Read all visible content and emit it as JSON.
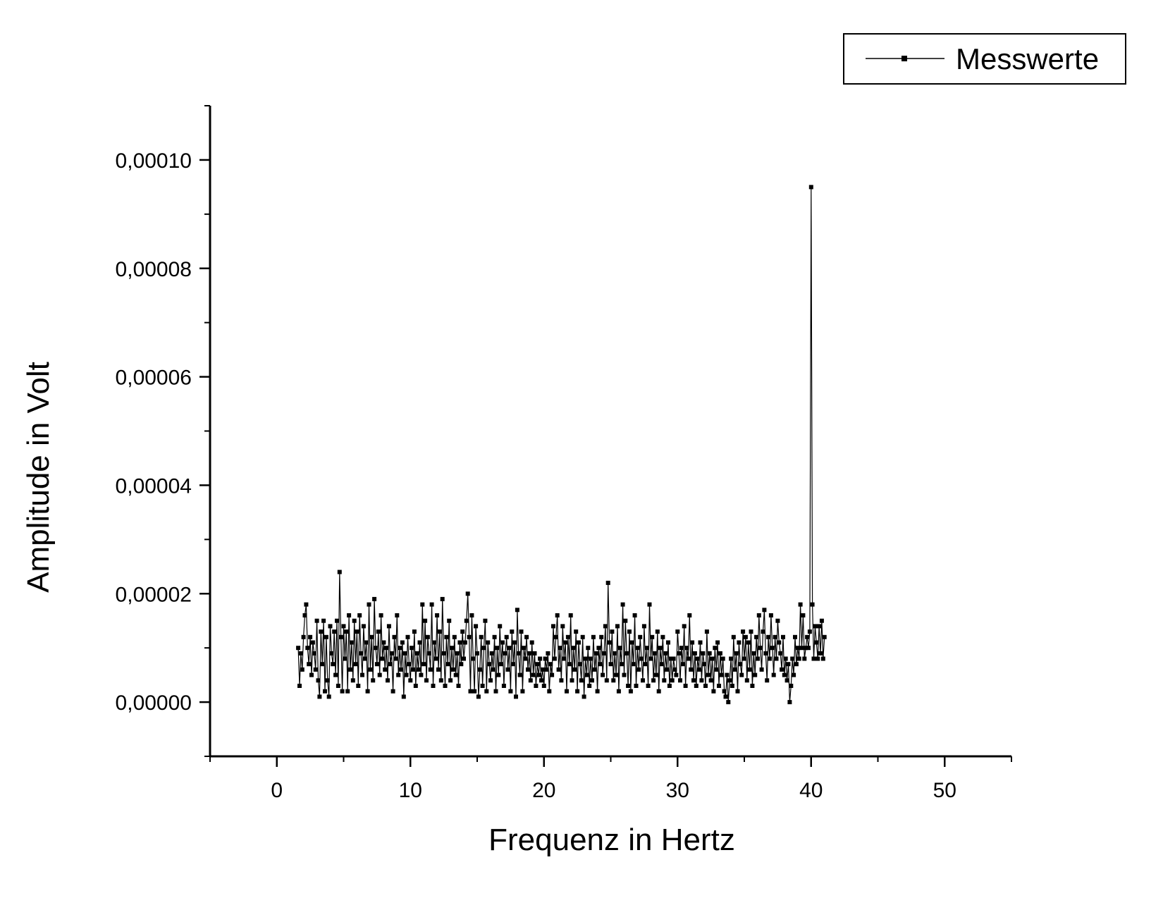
{
  "chart_data": {
    "type": "line",
    "title": "",
    "xlabel": "Frequenz in Hertz",
    "ylabel": "Amplitude in Volt",
    "xlim": [
      -5,
      55
    ],
    "ylim": [
      -1e-05,
      0.00011
    ],
    "x_ticks": [
      0,
      10,
      20,
      30,
      40,
      50
    ],
    "x_tick_labels": [
      "0",
      "10",
      "20",
      "30",
      "40",
      "50"
    ],
    "y_ticks": [
      0,
      2e-05,
      4e-05,
      6e-05,
      8e-05,
      0.0001
    ],
    "y_tick_labels": [
      "0,00000",
      "0,00002",
      "0,00004",
      "0,00006",
      "0,00008",
      "0,00010"
    ],
    "grid": false,
    "legend_position": "top-right",
    "series": [
      {
        "name": "Messwerte",
        "color": "#000000",
        "marker": "square",
        "x_start": 1.6,
        "x_step": 0.1,
        "values": [
          1e-05,
          3e-06,
          9e-06,
          6e-06,
          1.2e-05,
          1.6e-05,
          1.8e-05,
          1e-05,
          7e-06,
          1.2e-05,
          5e-06,
          1.1e-05,
          9e-06,
          6e-06,
          1.5e-05,
          4e-06,
          1e-06,
          1.3e-05,
          7e-06,
          1.5e-05,
          2e-06,
          1.2e-05,
          4e-06,
          1e-06,
          1.4e-05,
          9e-06,
          7e-06,
          1.3e-05,
          5e-06,
          1.5e-05,
          3e-06,
          2.4e-05,
          1.2e-05,
          2e-06,
          1.4e-05,
          8e-06,
          1.3e-05,
          2e-06,
          1.6e-05,
          6e-06,
          1.1e-05,
          4e-06,
          1.5e-05,
          7e-06,
          1.3e-05,
          3e-06,
          1.6e-05,
          9e-06,
          5e-06,
          1.4e-05,
          8e-06,
          1.1e-05,
          2e-06,
          1.8e-05,
          6e-06,
          1.2e-05,
          4e-06,
          1.9e-05,
          1e-05,
          7e-06,
          1.3e-05,
          5e-06,
          1.6e-05,
          8e-06,
          1.1e-05,
          6e-06,
          1e-05,
          4e-06,
          1.4e-05,
          7e-06,
          9e-06,
          2e-06,
          1.2e-05,
          8e-06,
          1.6e-05,
          5e-06,
          1e-05,
          6e-06,
          1.1e-05,
          1e-06,
          9e-06,
          5e-06,
          1.2e-05,
          7e-06,
          4e-06,
          1e-05,
          6e-06,
          1.3e-05,
          3e-06,
          9e-06,
          6e-06,
          1.1e-05,
          5e-06,
          1.8e-05,
          7e-06,
          1.5e-05,
          4e-06,
          1.2e-05,
          9e-06,
          6e-06,
          1.8e-05,
          3e-06,
          1.1e-05,
          8e-06,
          1.6e-05,
          6e-06,
          1.3e-05,
          4e-06,
          1.9e-05,
          9e-06,
          3e-06,
          1.2e-05,
          7e-06,
          1.5e-05,
          4e-06,
          1e-05,
          6e-06,
          1.2e-05,
          5e-06,
          9e-06,
          3e-06,
          1.1e-05,
          7e-06,
          1.3e-05,
          8e-06,
          1.1e-05,
          1.5e-05,
          2e-05,
          1.2e-05,
          2e-06,
          1.6e-05,
          8e-06,
          2e-06,
          1.4e-05,
          9e-06,
          1e-06,
          6e-06,
          1.2e-05,
          3e-06,
          1e-05,
          1.5e-05,
          2e-06,
          1.1e-05,
          7e-06,
          4e-06,
          9e-06,
          6e-06,
          1.2e-05,
          2e-06,
          1e-05,
          5e-06,
          1.4e-05,
          7e-06,
          1.1e-05,
          3e-06,
          9e-06,
          1.2e-05,
          6e-06,
          1e-05,
          2e-06,
          1.3e-05,
          7e-06,
          1.1e-05,
          1e-06,
          1.7e-05,
          9e-06,
          5e-06,
          1.3e-05,
          2e-06,
          1e-05,
          8e-06,
          1.2e-05,
          6e-06,
          9e-06,
          4e-06,
          1.1e-05,
          5e-06,
          9e-06,
          3e-06,
          7e-06,
          5e-06,
          8e-06,
          4e-06,
          6e-06,
          3e-06,
          8e-06,
          6e-06,
          9e-06,
          2e-06,
          7e-06,
          5e-06,
          1.4e-05,
          8e-06,
          1.2e-05,
          1.6e-05,
          6e-06,
          1e-05,
          4e-06,
          1.4e-05,
          8e-06,
          1.1e-05,
          2e-06,
          1.2e-05,
          7e-06,
          1.6e-05,
          4e-06,
          1e-05,
          6e-06,
          1.3e-05,
          2e-06,
          1.1e-05,
          7e-06,
          4e-06,
          1.2e-05,
          1e-06,
          8e-06,
          5e-06,
          1e-05,
          3e-06,
          8e-06,
          4e-06,
          1.2e-05,
          6e-06,
          9e-06,
          2e-06,
          1e-05,
          7e-06,
          1.2e-05,
          5e-06,
          9e-06,
          1.4e-05,
          4e-06,
          2.2e-05,
          1.1e-05,
          7e-06,
          1.3e-05,
          4e-06,
          9e-06,
          5e-06,
          1.4e-05,
          2e-06,
          1e-05,
          7e-06,
          1.8e-05,
          5e-06,
          1.5e-05,
          9e-06,
          3e-06,
          1.3e-05,
          2e-06,
          1.1e-05,
          7e-06,
          1.6e-05,
          3e-06,
          1e-05,
          6e-06,
          1.2e-05,
          8e-06,
          4e-06,
          1.4e-05,
          7e-06,
          1e-05,
          3e-06,
          1.8e-05,
          8e-06,
          1.2e-05,
          4e-06,
          9e-06,
          5e-06,
          1.3e-05,
          2e-06,
          1e-05,
          7e-06,
          1.2e-05,
          4e-06,
          9e-06,
          6e-06,
          1.1e-05,
          3e-06,
          8e-06,
          4e-06,
          8e-06,
          6e-06,
          5e-06,
          1.3e-05,
          9e-06,
          4e-06,
          1e-05,
          7e-06,
          1.4e-05,
          3e-06,
          1e-05,
          8e-06,
          1.6e-05,
          6e-06,
          1.1e-05,
          4e-06,
          9e-06,
          3e-06,
          8e-06,
          6e-06,
          1.1e-05,
          4e-06,
          9e-06,
          7e-06,
          3e-06,
          1.3e-05,
          5e-06,
          9e-06,
          4e-06,
          8e-06,
          2e-06,
          1e-05,
          6e-06,
          1.1e-05,
          3e-06,
          9e-06,
          5e-06,
          8e-06,
          2e-06,
          1e-06,
          5e-06,
          0.0,
          4e-06,
          8e-06,
          3e-06,
          1.2e-05,
          6e-06,
          9e-06,
          2e-06,
          1.1e-05,
          7e-06,
          5e-06,
          1.3e-05,
          8e-06,
          1.2e-05,
          4e-06,
          1.1e-05,
          6e-06,
          1.3e-05,
          3e-06,
          9e-06,
          5e-06,
          1.2e-05,
          8e-06,
          1.6e-05,
          1e-05,
          6e-06,
          1.3e-05,
          1.7e-05,
          9e-06,
          4e-06,
          1.2e-05,
          8e-06,
          1.6e-05,
          1e-05,
          5e-06,
          1.2e-05,
          8e-06,
          1.5e-05,
          1.1e-05,
          9e-06,
          6e-06,
          1.2e-05,
          5e-06,
          8e-06,
          4e-06,
          7e-06,
          0.0,
          3e-06,
          8e-06,
          5e-06,
          1.2e-05,
          7e-06,
          1e-05,
          8e-06,
          1.8e-05,
          1e-05,
          1.6e-05,
          8e-06,
          1e-05,
          1.2e-05,
          1e-05,
          1.3e-05,
          9.5e-05,
          1.8e-05,
          8e-06,
          1.4e-05,
          1.1e-05,
          8e-06,
          1.4e-05,
          9e-06,
          1.5e-05,
          8e-06,
          1.2e-05
        ]
      }
    ]
  }
}
